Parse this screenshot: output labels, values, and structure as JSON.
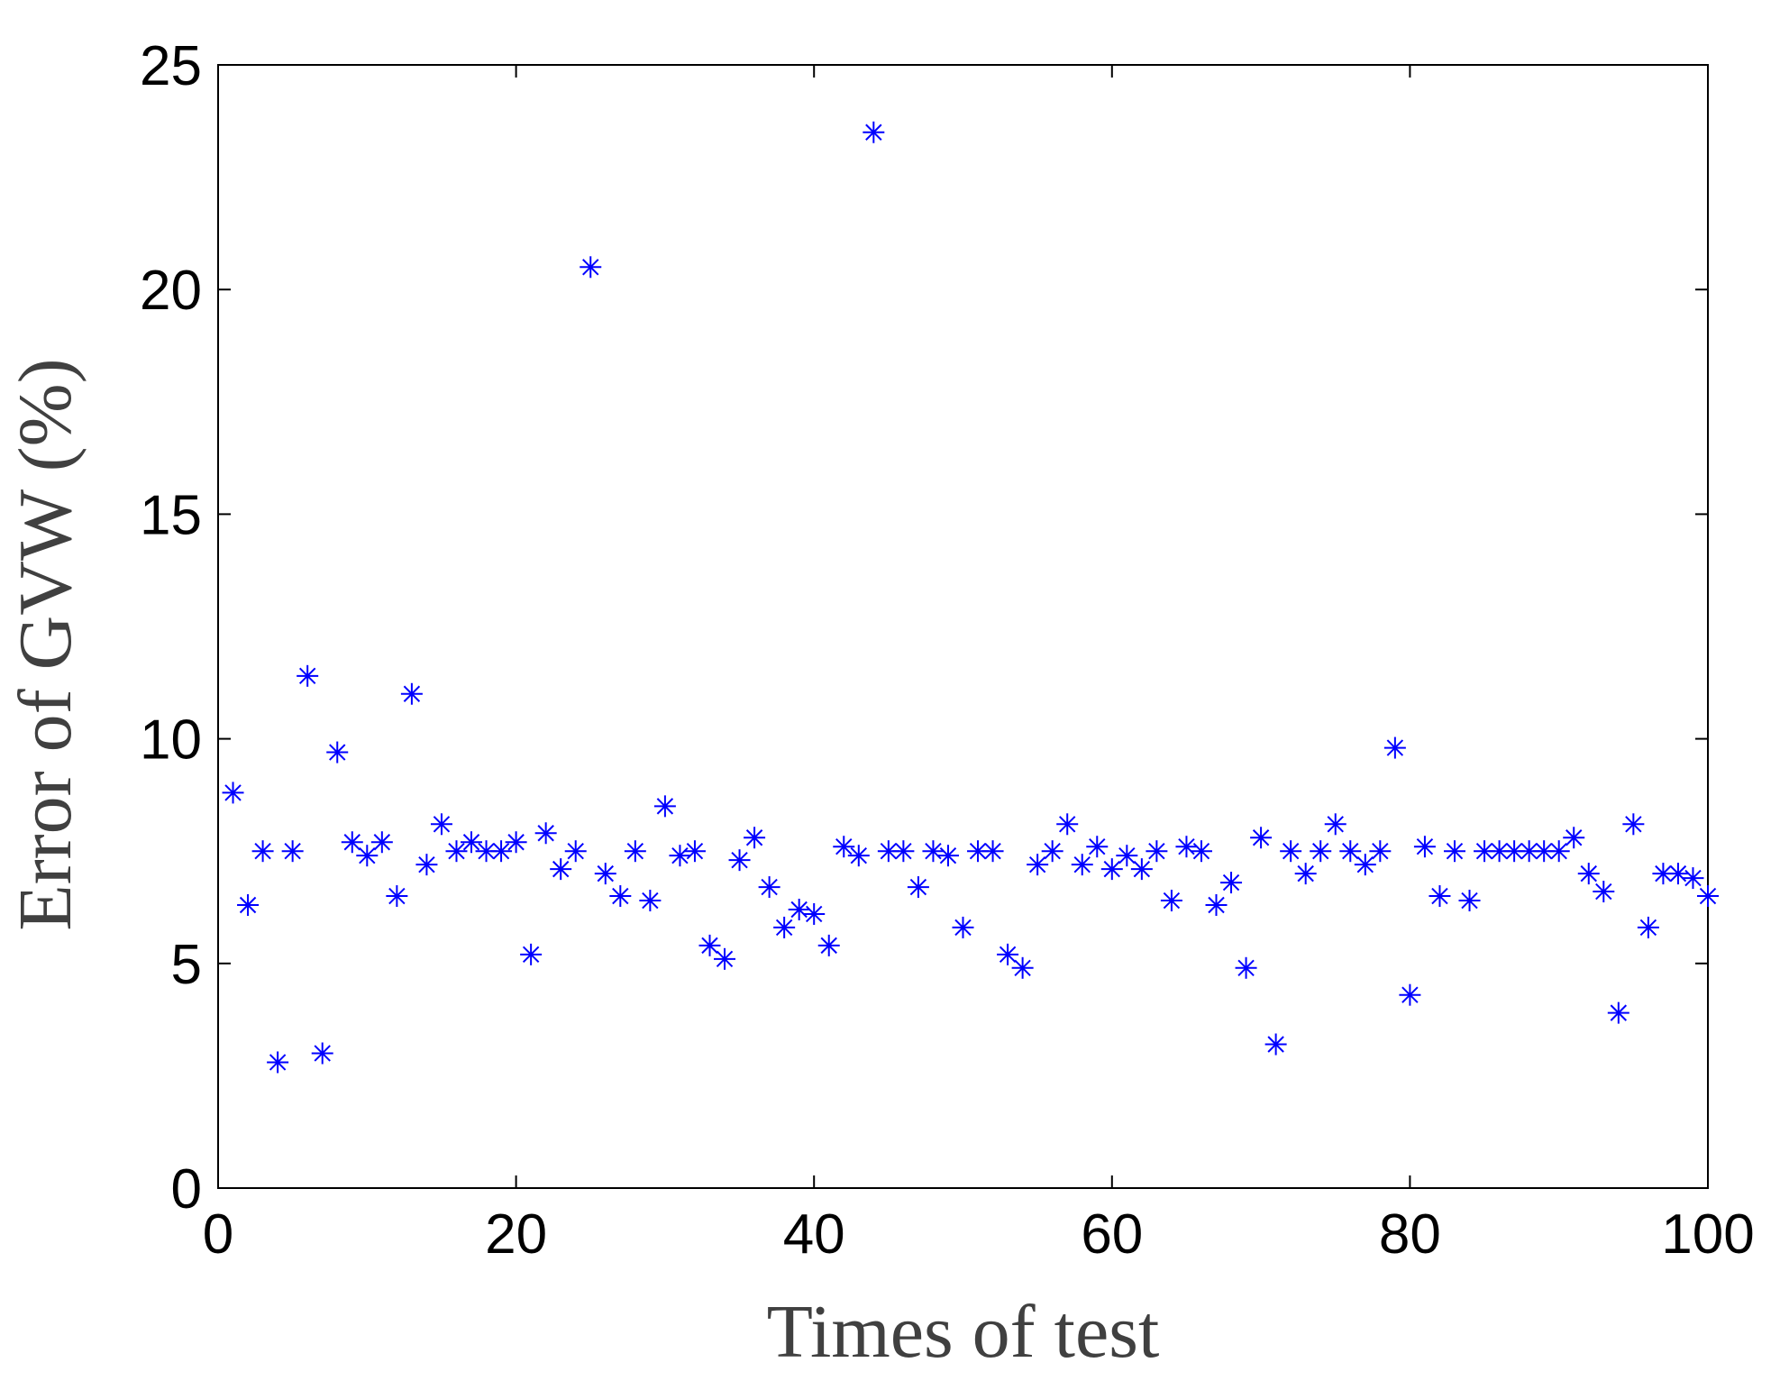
{
  "chart_data": {
    "type": "scatter",
    "xlabel": "Times of test",
    "ylabel": "Error of GVW (%)",
    "xlim": [
      0,
      100
    ],
    "ylim": [
      0,
      25
    ],
    "xticks": [
      0,
      20,
      40,
      60,
      80,
      100
    ],
    "yticks": [
      0,
      5,
      10,
      15,
      20,
      25
    ],
    "marker": "asterisk",
    "grid": false,
    "series": [
      {
        "color": "#0000FF",
        "x": [
          1,
          2,
          3,
          4,
          5,
          6,
          7,
          8,
          9,
          10,
          11,
          12,
          13,
          14,
          15,
          16,
          17,
          18,
          19,
          20,
          21,
          22,
          23,
          24,
          25,
          26,
          27,
          28,
          29,
          30,
          31,
          32,
          33,
          34,
          35,
          36,
          37,
          38,
          39,
          40,
          41,
          42,
          43,
          44,
          45,
          46,
          47,
          48,
          49,
          50,
          51,
          52,
          53,
          54,
          55,
          56,
          57,
          58,
          59,
          60,
          61,
          62,
          63,
          64,
          65,
          66,
          67,
          68,
          69,
          70,
          71,
          72,
          73,
          74,
          75,
          76,
          77,
          78,
          79,
          80,
          81,
          82,
          83,
          84,
          85,
          86,
          87,
          88,
          89,
          90,
          91,
          92,
          93,
          94,
          95,
          96,
          97,
          98,
          99,
          100
        ],
        "y": [
          8.8,
          6.3,
          7.5,
          2.8,
          7.5,
          11.4,
          3.0,
          9.7,
          7.7,
          7.4,
          7.7,
          6.5,
          11.0,
          7.2,
          8.1,
          7.5,
          7.7,
          7.5,
          7.5,
          7.7,
          5.2,
          7.9,
          7.1,
          7.5,
          20.5,
          7.0,
          6.5,
          7.5,
          6.4,
          8.5,
          7.4,
          7.5,
          5.4,
          5.1,
          7.3,
          7.8,
          6.7,
          5.8,
          6.2,
          6.1,
          5.4,
          7.6,
          7.4,
          23.5,
          7.5,
          7.5,
          6.7,
          7.5,
          7.4,
          5.8,
          7.5,
          7.5,
          5.2,
          4.9,
          7.2,
          7.5,
          8.1,
          7.2,
          7.6,
          7.1,
          7.4,
          7.1,
          7.5,
          6.4,
          7.6,
          7.5,
          6.3,
          6.8,
          4.9,
          7.8,
          3.2,
          7.5,
          7.0,
          7.5,
          8.1,
          7.5,
          7.2,
          7.5,
          9.8,
          4.3,
          7.6,
          6.5,
          7.5,
          6.4,
          7.5,
          7.5,
          7.5,
          7.5,
          7.5,
          7.5,
          7.8,
          7.0,
          6.6,
          3.9,
          8.1,
          5.8,
          7.0,
          7.0,
          6.9,
          6.5
        ]
      }
    ]
  }
}
